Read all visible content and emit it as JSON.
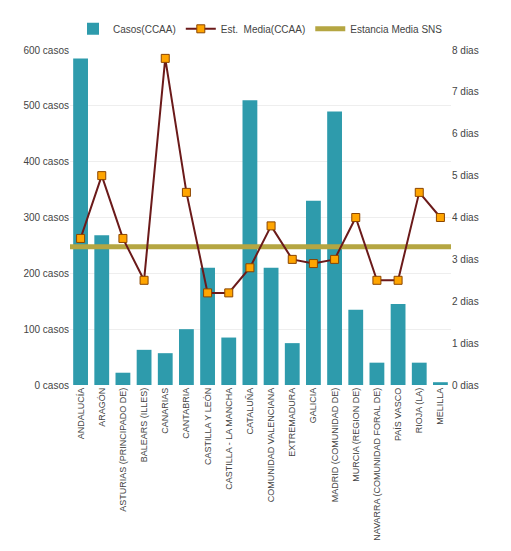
{
  "chart_data": {
    "type": "bar",
    "categories": [
      "ANDALUCÍA",
      "ARAGÓN",
      "ASTURIAS (PRINCIPADO DE)",
      "BALEARS (ILLES)",
      "CANARIAS",
      "CANTABRIA",
      "CASTILLA Y LEÓN",
      "CASTILLA - LA MANCHA",
      "CATALUÑA",
      "COMUNIDAD VALENCIANA",
      "EXTREMADURA",
      "GALICIA",
      "MADRID (COMUNIDAD DE)",
      "MURCIA (REGION DE)",
      "NAVARRA (COMUNIDAD FORAL DE)",
      "PAÍS VASCO",
      "RIOJA (LA)",
      "MELILLA"
    ],
    "series": [
      {
        "name": "Casos(CCAA)",
        "type": "bar",
        "color": "#2E9BAC",
        "values": [
          585,
          268,
          22,
          63,
          57,
          100,
          210,
          85,
          510,
          210,
          75,
          330,
          490,
          135,
          40,
          145,
          40,
          5
        ]
      },
      {
        "name": "Est.  Media(CCAA)",
        "type": "line",
        "axis": "y2",
        "color": "#6B1A1A",
        "marker": "square",
        "line_style": "solid",
        "values": [
          3.5,
          5.0,
          3.5,
          2.5,
          7.8,
          4.6,
          2.2,
          2.2,
          2.8,
          3.8,
          3.0,
          2.9,
          3.0,
          4.0,
          2.5,
          2.5,
          4.6,
          4.0
        ]
      },
      {
        "name": "Estancia Media SNS",
        "type": "hline",
        "axis": "y2",
        "color": "#B5A642",
        "value": 3.3
      }
    ],
    "ylim": [
      0,
      600
    ],
    "yticks": [
      {
        "value": 0,
        "label": "0 casos"
      },
      {
        "value": 100,
        "label": "100 casos"
      },
      {
        "value": 200,
        "label": "200 casos"
      },
      {
        "value": 300,
        "label": "300 casos"
      },
      {
        "value": 400,
        "label": "400 casos"
      },
      {
        "value": 500,
        "label": "500 casos"
      },
      {
        "value": 600,
        "label": "600 casos"
      }
    ],
    "y2lim": [
      0,
      8
    ],
    "y2ticks": [
      {
        "value": 0,
        "label": "0 dias"
      },
      {
        "value": 1,
        "label": "1 dias"
      },
      {
        "value": 2,
        "label": "2 dias"
      },
      {
        "value": 3,
        "label": "3 dias"
      },
      {
        "value": 4,
        "label": "4 dias"
      },
      {
        "value": 5,
        "label": "5 dias"
      },
      {
        "value": 6,
        "label": "6 dias"
      },
      {
        "value": 7,
        "label": "7 dias"
      },
      {
        "value": 8,
        "label": "8 dias"
      }
    ],
    "grid": true,
    "legend": "top"
  }
}
